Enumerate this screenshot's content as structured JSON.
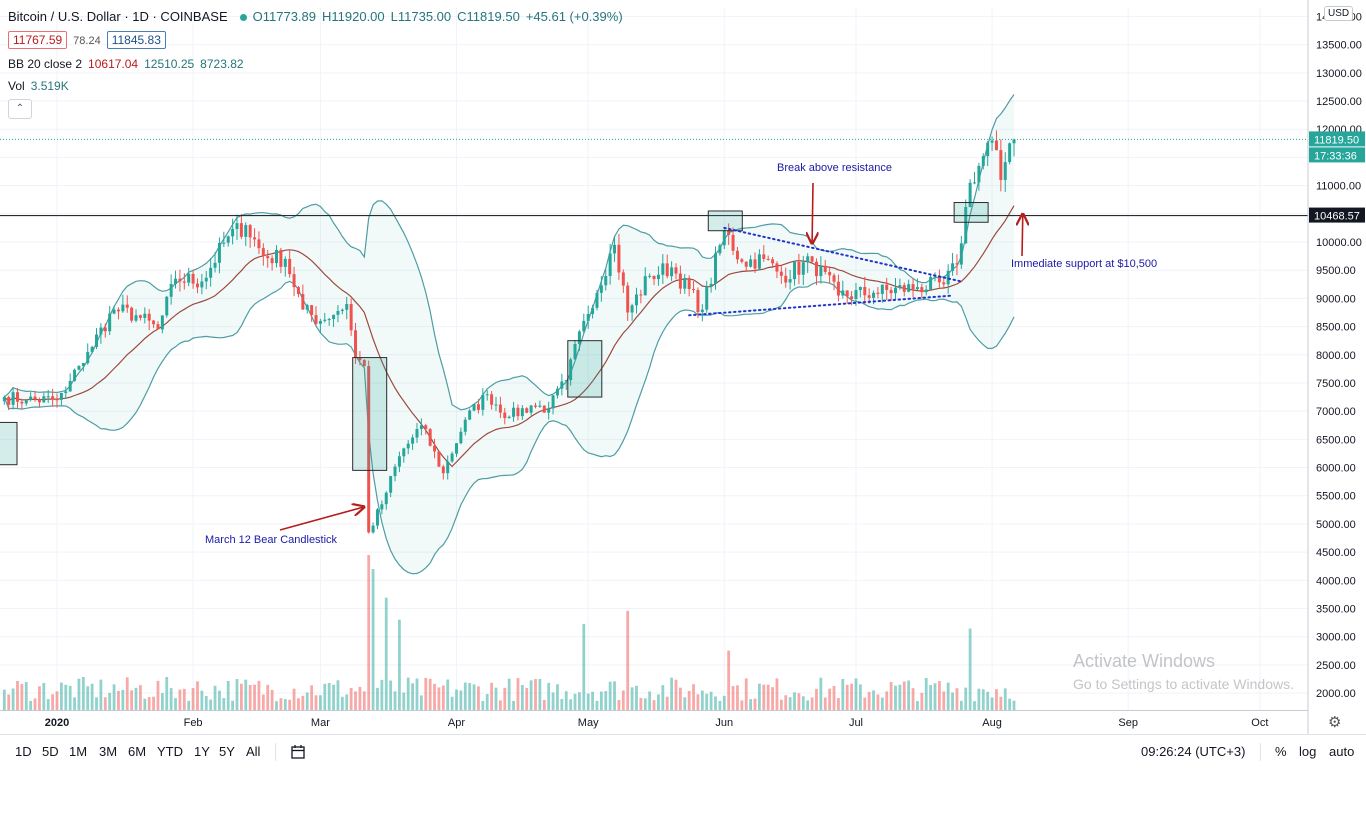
{
  "header": {
    "symbol": "Bitcoin / U.S. Dollar · 1D · COINBASE",
    "ohlc": {
      "open": "O11773.89",
      "high": "H11920.00",
      "low": "L11735.00",
      "close": "C11819.50",
      "change": "+45.61 (+0.39%)"
    },
    "bid": "11767.59",
    "spread": "78.24",
    "ask": "11845.83",
    "bb_label": "BB 20 close 2",
    "bb_basis": "10617.04",
    "bb_upper": "12510.25",
    "bb_lower": "8723.82",
    "vol_label": "Vol",
    "vol_value": "3.519K",
    "collapse_symbol": "⌃"
  },
  "price_axis": {
    "currency": "USD",
    "ticks": [
      "14000.00",
      "13500.00",
      "13000.00",
      "12500.00",
      "12000.00",
      "11500.00",
      "11000.00",
      "10500.00",
      "10000.00",
      "9500.00",
      "9000.00",
      "8500.00",
      "8000.00",
      "7500.00",
      "7000.00",
      "6500.00",
      "6000.00",
      "5500.00",
      "5000.00",
      "4500.00",
      "4000.00",
      "3500.00",
      "3000.00",
      "2500.00",
      "2000.00"
    ],
    "last_price_label": "11819.50",
    "countdown_label": "17:33:36",
    "level_label": "10468.57"
  },
  "time_axis": {
    "ticks": [
      "2020",
      "Feb",
      "Mar",
      "Apr",
      "May",
      "Jun",
      "Jul",
      "Aug",
      "Sep",
      "Oct"
    ]
  },
  "annotations": {
    "break": "Break above resistance",
    "support": "Immediate support at $10,500",
    "march": "March 12 Bear Candlestick"
  },
  "bottom_bar": {
    "ranges": [
      "1D",
      "5D",
      "1M",
      "3M",
      "6M",
      "YTD",
      "1Y",
      "5Y",
      "All"
    ],
    "time": "09:26:24 (UTC+3)",
    "percent": "%",
    "log": "log",
    "auto": "auto"
  },
  "watermark": {
    "line1": "Activate Windows",
    "line2": "Go to Settings to activate Windows."
  },
  "colors": {
    "up": "#26a69a",
    "down": "#ef5350",
    "bb_line": "#4d9da3",
    "bb_fill": "rgba(38,166,154,0.06)",
    "basis": "#9c4a3f",
    "resistance": "#2b2b2b",
    "annotation_text": "#1a1aa8",
    "arrow": "#b71c1c",
    "trendline": "#2233cc"
  },
  "chart_data": {
    "type": "candlestick",
    "key_level": 10468.57,
    "last_price": 11819.5,
    "ylim": [
      1700,
      14150
    ],
    "bollinger": {
      "period": 20,
      "source": "close",
      "stddev": 2
    },
    "anchors": [
      {
        "date": "2019-12-20",
        "price": 7250
      },
      {
        "date": "2019-12-25",
        "price": 7200
      },
      {
        "date": "2020-01-01",
        "price": 7200
      },
      {
        "date": "2020-01-03",
        "price": 7350
      },
      {
        "date": "2020-01-06",
        "price": 7800
      },
      {
        "date": "2020-01-08",
        "price": 8050
      },
      {
        "date": "2020-01-14",
        "price": 8800
      },
      {
        "date": "2020-01-19",
        "price": 8700
      },
      {
        "date": "2020-01-24",
        "price": 8450
      },
      {
        "date": "2020-01-28",
        "price": 9350
      },
      {
        "date": "2020-02-03",
        "price": 9300
      },
      {
        "date": "2020-02-09",
        "price": 10100
      },
      {
        "date": "2020-02-13",
        "price": 10300
      },
      {
        "date": "2020-02-17",
        "price": 9750
      },
      {
        "date": "2020-02-22",
        "price": 9700
      },
      {
        "date": "2020-02-26",
        "price": 8800
      },
      {
        "date": "2020-03-01",
        "price": 8600
      },
      {
        "date": "2020-03-07",
        "price": 8900
      },
      {
        "date": "2020-03-09",
        "price": 7950
      },
      {
        "date": "2020-03-11",
        "price": 7800
      },
      {
        "date": "2020-03-12",
        "price": 4850
      },
      {
        "date": "2020-03-15",
        "price": 5350
      },
      {
        "date": "2020-03-19",
        "price": 6200
      },
      {
        "date": "2020-03-24",
        "price": 6750
      },
      {
        "date": "2020-03-29",
        "price": 5900
      },
      {
        "date": "2020-04-03",
        "price": 6850
      },
      {
        "date": "2020-04-08",
        "price": 7300
      },
      {
        "date": "2020-04-13",
        "price": 6900
      },
      {
        "date": "2020-04-18",
        "price": 7100
      },
      {
        "date": "2020-04-22",
        "price": 7050
      },
      {
        "date": "2020-04-26",
        "price": 7550
      },
      {
        "date": "2020-04-30",
        "price": 8600
      },
      {
        "date": "2020-05-07",
        "price": 9950
      },
      {
        "date": "2020-05-10",
        "price": 8750
      },
      {
        "date": "2020-05-15",
        "price": 9400
      },
      {
        "date": "2020-05-20",
        "price": 9550
      },
      {
        "date": "2020-05-27",
        "price": 8800
      },
      {
        "date": "2020-06-01",
        "price": 10200
      },
      {
        "date": "2020-06-05",
        "price": 9650
      },
      {
        "date": "2020-06-10",
        "price": 9700
      },
      {
        "date": "2020-06-14",
        "price": 9400
      },
      {
        "date": "2020-06-21",
        "price": 9650
      },
      {
        "date": "2020-06-27",
        "price": 9050
      },
      {
        "date": "2020-07-05",
        "price": 9100
      },
      {
        "date": "2020-07-15",
        "price": 9200
      },
      {
        "date": "2020-07-21",
        "price": 9250
      },
      {
        "date": "2020-07-24",
        "price": 9600
      },
      {
        "date": "2020-07-27",
        "price": 11050
      },
      {
        "date": "2020-08-01",
        "price": 11800
      },
      {
        "date": "2020-08-03",
        "price": 11100
      },
      {
        "date": "2020-08-05",
        "price": 11750
      },
      {
        "date": "2020-08-06",
        "price": 11819.5
      }
    ],
    "volume_ylim": [
      0,
      3.519
    ],
    "volume_spikes": [
      {
        "date": "2020-03-12",
        "value": 3.519
      },
      {
        "date": "2020-03-13",
        "value": 3.2
      },
      {
        "date": "2020-03-16",
        "value": 2.55
      },
      {
        "date": "2020-03-19",
        "value": 2.05
      },
      {
        "date": "2020-04-30",
        "value": 1.95
      },
      {
        "date": "2020-05-10",
        "value": 2.25
      },
      {
        "date": "2020-06-02",
        "value": 1.35
      },
      {
        "date": "2020-07-27",
        "value": 1.85
      }
    ]
  }
}
